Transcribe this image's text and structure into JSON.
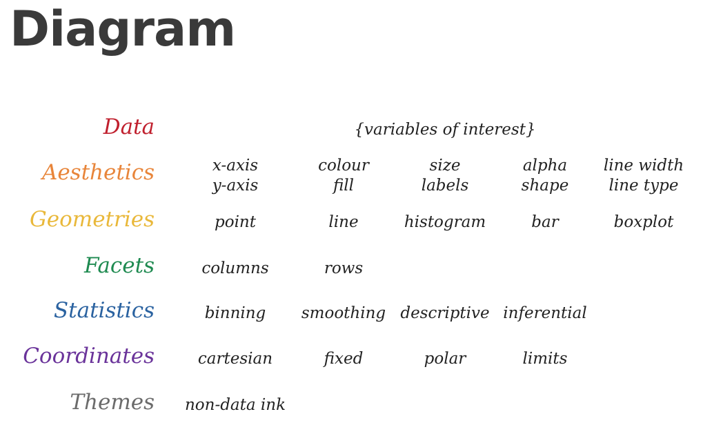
{
  "title": "Diagram",
  "rows": [
    {
      "label": "Data",
      "color": "#c0202e",
      "cells": [
        [
          "{variables of interest}"
        ]
      ],
      "wide": true
    },
    {
      "label": "Aesthetics",
      "color": "#e8853a",
      "cells": [
        [
          "x-axis",
          "y-axis"
        ],
        [
          "colour",
          "fill"
        ],
        [
          "size",
          "labels"
        ],
        [
          "alpha",
          "shape"
        ],
        [
          "line width",
          "line type"
        ]
      ]
    },
    {
      "label": "Geometries",
      "color": "#e9b83a",
      "cells": [
        [
          "point"
        ],
        [
          "line"
        ],
        [
          "histogram"
        ],
        [
          "bar"
        ],
        [
          "boxplot"
        ]
      ]
    },
    {
      "label": "Facets",
      "color": "#1e8a50",
      "cells": [
        [
          "columns"
        ],
        [
          "rows"
        ]
      ]
    },
    {
      "label": "Statistics",
      "color": "#2a62a0",
      "cells": [
        [
          "binning"
        ],
        [
          "smoothing"
        ],
        [
          "descriptive"
        ],
        [
          "inferential"
        ]
      ]
    },
    {
      "label": "Coordinates",
      "color": "#6a339a",
      "cells": [
        [
          "cartesian"
        ],
        [
          "fixed"
        ],
        [
          "polar"
        ],
        [
          "limits"
        ]
      ]
    },
    {
      "label": "Themes",
      "color": "#6b6b6b",
      "cells": [
        [
          "non-data ink"
        ]
      ]
    }
  ]
}
